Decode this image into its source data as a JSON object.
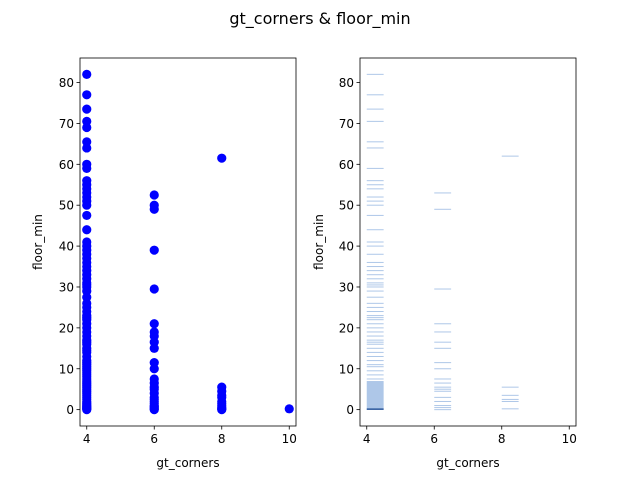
{
  "title": "gt_corners & floor_min",
  "colors": {
    "scatter": "#0000ff",
    "hist_light": "#aec7e8",
    "hist_dark": "#1f4e96"
  },
  "chart_data": [
    {
      "type": "scatter",
      "xlabel": "gt_corners",
      "ylabel": "floor_min",
      "xlim": [
        3.8,
        10.2
      ],
      "ylim": [
        -4,
        86
      ],
      "xticks": [
        "4",
        "6",
        "8",
        "10"
      ],
      "yticks": [
        "0",
        "10",
        "20",
        "30",
        "40",
        "50",
        "60",
        "70",
        "80"
      ],
      "series": [
        {
          "x": 4,
          "y": [
            0,
            0.2,
            0.4,
            0.6,
            0.8,
            1,
            1.3,
            1.6,
            2,
            2.5,
            3,
            3.5,
            4,
            4.5,
            5,
            5.5,
            6,
            6.5,
            7,
            7.5,
            8,
            8.5,
            9,
            9.5,
            10,
            10.5,
            11,
            11.5,
            12,
            13,
            14,
            14.5,
            15,
            16,
            16.5,
            17,
            18,
            19,
            20,
            21,
            22,
            22.5,
            23,
            24,
            25,
            26,
            27.5,
            29,
            30,
            30.5,
            31,
            32,
            33,
            34,
            35,
            36,
            37,
            38,
            39,
            40,
            41,
            44,
            47.5,
            50,
            51,
            52,
            53,
            54,
            55,
            56,
            59,
            60,
            64,
            65.5,
            69,
            70.5,
            73.5,
            77,
            82
          ]
        },
        {
          "x": 6,
          "y": [
            0,
            0.2,
            0.5,
            0.8,
            1,
            1.5,
            2,
            2.5,
            3,
            4,
            5,
            5.5,
            6.5,
            7.5,
            10,
            11.5,
            15,
            16.5,
            18,
            19,
            21,
            29.5,
            39,
            49,
            50,
            52.5
          ]
        },
        {
          "x": 8,
          "y": [
            0,
            0.2,
            0.5,
            1,
            1.5,
            2,
            3,
            3.5,
            4.5,
            5.5,
            61.5
          ]
        },
        {
          "x": 10,
          "y": [
            0.2
          ]
        }
      ]
    },
    {
      "type": "heatmap",
      "xlabel": "gt_corners",
      "ylabel": "floor_min",
      "xlim": [
        3.8,
        10.2
      ],
      "ylim": [
        -4,
        86
      ],
      "xticks": [
        "4",
        "6",
        "8",
        "10"
      ],
      "yticks": [
        "0",
        "10",
        "20",
        "30",
        "40",
        "50",
        "60",
        "70",
        "80"
      ],
      "bins": [
        {
          "x": 4,
          "dense_range": [
            0,
            7
          ],
          "lines": [
            7.5,
            8.5,
            9.5,
            10.5,
            11,
            12,
            13,
            14,
            15,
            16,
            16.5,
            17,
            18,
            19,
            20,
            21,
            22,
            22.5,
            23,
            24,
            25,
            26,
            27.5,
            29,
            30,
            30.5,
            31,
            32,
            33,
            34,
            35,
            36,
            38,
            40,
            41,
            44,
            47.5,
            50,
            51,
            52,
            54,
            55,
            56,
            59,
            64,
            65.5,
            70.5,
            73.5,
            77,
            82
          ]
        },
        {
          "x": 6,
          "dense_range": [
            0,
            0
          ],
          "lines": [
            0,
            0.5,
            1,
            2,
            3,
            4.5,
            5,
            5.5,
            6.5,
            7.5,
            10,
            11.5,
            15,
            16.5,
            19,
            21,
            29.5,
            49,
            53
          ]
        },
        {
          "x": 8,
          "dense_range": [
            0,
            0
          ],
          "lines": [
            0.2,
            2,
            2.5,
            3.5,
            5.5,
            62
          ]
        }
      ]
    }
  ]
}
